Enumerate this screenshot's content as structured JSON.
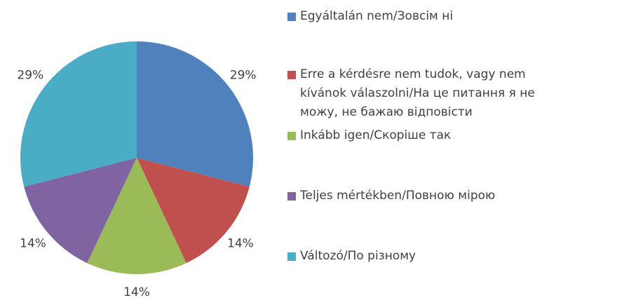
{
  "chart_data": {
    "type": "pie",
    "categories": [
      "Egyáltalán nem/Зовсім ні",
      "Erre a kérdésre nem tudok, vagy nem kívánok válaszolni/На це питання я не можу, не бажаю відповісти",
      "Inkább igen/Скоріше так",
      "Teljes mértékben/Повною мірою",
      "Változó/По різному"
    ],
    "values": [
      29,
      14,
      14,
      14,
      29
    ],
    "value_labels": [
      "29%",
      "14%",
      "14%",
      "14%",
      "29%"
    ],
    "colors": [
      "#4f81bd",
      "#c0504d",
      "#9bbb59",
      "#8064a2",
      "#4bacc6"
    ]
  }
}
